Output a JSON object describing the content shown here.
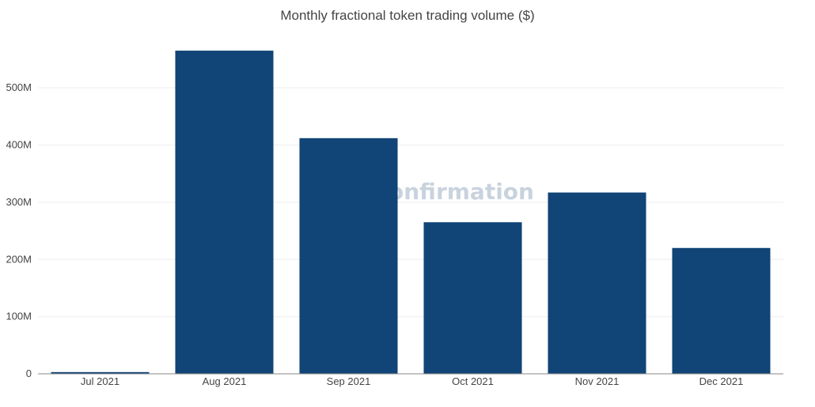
{
  "chart_data": {
    "type": "bar",
    "title": "Monthly fractional token trading volume ($)",
    "xlabel": "",
    "ylabel": "",
    "categories": [
      "Jul 2021",
      "Aug 2021",
      "Sep 2021",
      "Oct 2021",
      "Nov 2021",
      "Dec 2021"
    ],
    "values": [
      3000000,
      565000000,
      412000000,
      265000000,
      317000000,
      220000000
    ],
    "ylim": [
      0,
      590000000
    ],
    "yticks": [
      0,
      100000000,
      200000000,
      300000000,
      400000000,
      500000000
    ],
    "ytick_labels": [
      "0",
      "100M",
      "200M",
      "300M",
      "400M",
      "500M"
    ],
    "grid": true,
    "legend": "none"
  },
  "watermark": "onfirmation",
  "colors": {
    "bar": "#114477",
    "grid": "#eeeeee",
    "axis": "#888888",
    "text": "#444444",
    "watermark": "#c9d3de"
  }
}
